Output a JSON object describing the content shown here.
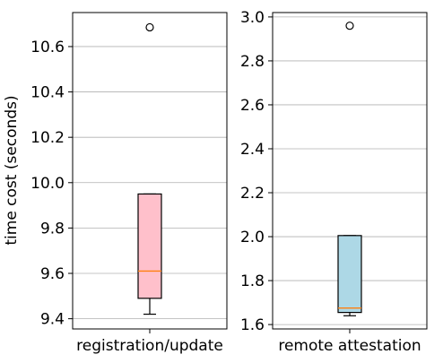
{
  "chart_data": {
    "type": "boxplot",
    "ylabel": "time cost (seconds)",
    "grid": "y-major",
    "panels": [
      {
        "category": "registration/update",
        "ylim": [
          9.355,
          10.75
        ],
        "yticks": [
          9.4,
          9.6,
          9.8,
          10.0,
          10.2,
          10.4,
          10.6
        ],
        "ytick_labels": [
          "9.4",
          "9.6",
          "9.8",
          "10.0",
          "10.2",
          "10.4",
          "10.6"
        ],
        "box": {
          "whisker_low": 9.42,
          "q1": 9.49,
          "median": 9.61,
          "q3": 9.95,
          "whisker_high": 9.95
        },
        "outliers": [
          10.685
        ],
        "box_color": "#ffc0cb",
        "median_color": "#ff7f0e"
      },
      {
        "category": "remote attestation",
        "ylim": [
          1.58,
          3.02
        ],
        "yticks": [
          1.6,
          1.8,
          2.0,
          2.2,
          2.4,
          2.6,
          2.8,
          3.0
        ],
        "ytick_labels": [
          "1.6",
          "1.8",
          "2.0",
          "2.2",
          "2.4",
          "2.6",
          "2.8",
          "3.0"
        ],
        "box": {
          "whisker_low": 1.64,
          "q1": 1.655,
          "median": 1.675,
          "q3": 2.005,
          "whisker_high": 2.005
        },
        "outliers": [
          2.96
        ],
        "box_color": "#add8e6",
        "median_color": "#ff7f0e"
      }
    ]
  }
}
